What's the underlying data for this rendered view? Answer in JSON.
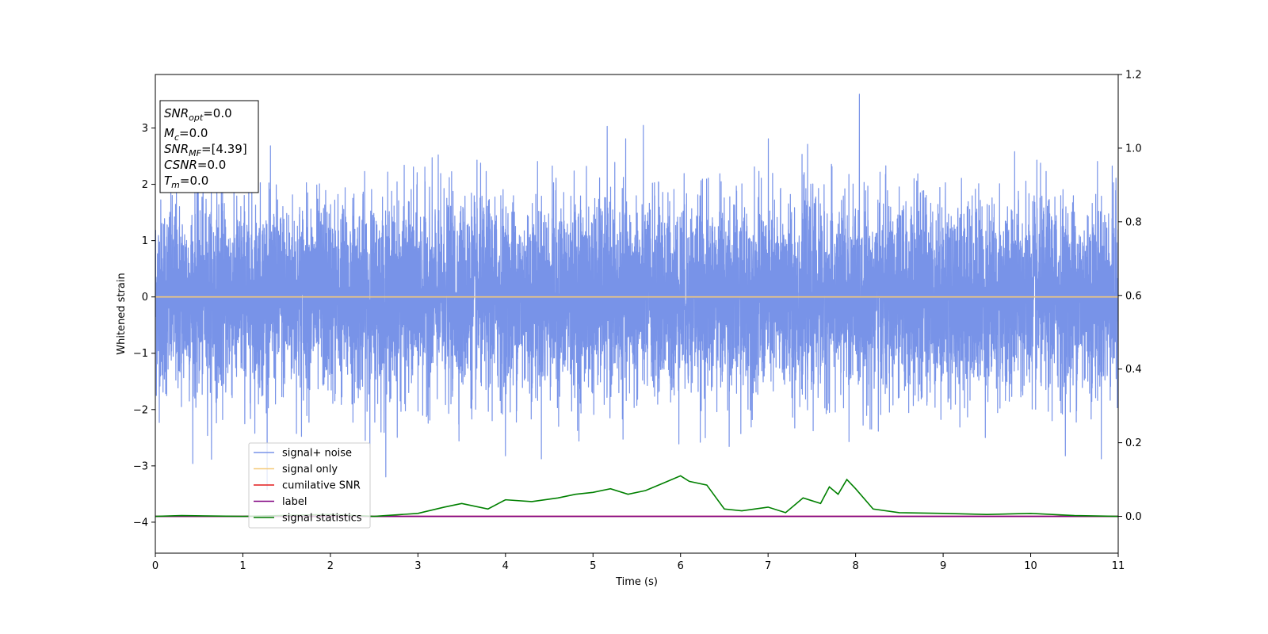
{
  "chart_data": {
    "type": "line",
    "title": "",
    "xlabel": "Time (s)",
    "ylabel": "Whitened strain",
    "xlim": [
      0,
      11
    ],
    "ylim": [
      -4.55,
      3.95
    ],
    "y2lim": [
      -0.1,
      1.2
    ],
    "x_ticks": [
      0,
      1,
      2,
      3,
      4,
      5,
      6,
      7,
      8,
      9,
      10,
      11
    ],
    "y_ticks": [
      -4,
      -3,
      -2,
      -1,
      0,
      1,
      2,
      3
    ],
    "y_tick_labels": [
      "−4",
      "−3",
      "−2",
      "−1",
      "0",
      "1",
      "2",
      "3"
    ],
    "y2_ticks": [
      0.0,
      0.2,
      0.4,
      0.6,
      0.8,
      1.0,
      1.2
    ],
    "y2_tick_labels": [
      "0.0",
      "0.2",
      "0.4",
      "0.6",
      "0.8",
      "1.0",
      "1.2"
    ],
    "grid": false,
    "legend_position": "lower-left",
    "info_box": {
      "snr_opt": {
        "base": "SNR",
        "sub": "opt",
        "value": "=0.0"
      },
      "mc": {
        "base": "M",
        "sub": "c",
        "value": "=0.0"
      },
      "snr_mf": {
        "base": "SNR",
        "sub": "MF",
        "value": "=[4.39]"
      },
      "csnr": {
        "base": "CSNR",
        "value": "=0.0"
      },
      "tm": {
        "base": "T",
        "sub": "m",
        "value": "=0.0"
      }
    },
    "series": [
      {
        "name": "signal+ noise",
        "axis": "left",
        "color": "#7893e8",
        "kind": "noise",
        "duration": 11,
        "std": 1.0,
        "approx_range": [
          -4.0,
          3.6
        ]
      },
      {
        "name": "signal only",
        "axis": "left",
        "color": "#f5c97a",
        "x": [
          0,
          11
        ],
        "y": [
          0,
          0
        ]
      },
      {
        "name": "cumilative SNR",
        "axis": "right",
        "color": "#e41a1c",
        "x": [
          0,
          11
        ],
        "y": [
          0,
          0
        ]
      },
      {
        "name": "label",
        "axis": "right",
        "color": "#800080",
        "x": [
          0,
          11
        ],
        "y": [
          0,
          0
        ]
      },
      {
        "name": "signal statistics",
        "axis": "right",
        "color": "#008000",
        "x": [
          0,
          0.3,
          1.0,
          2.0,
          2.5,
          3.0,
          3.3,
          3.5,
          3.8,
          4.0,
          4.3,
          4.6,
          4.8,
          5.0,
          5.2,
          5.4,
          5.6,
          5.8,
          6.0,
          6.1,
          6.3,
          6.5,
          6.7,
          7.0,
          7.2,
          7.4,
          7.6,
          7.7,
          7.8,
          7.9,
          8.0,
          8.2,
          8.5,
          9.0,
          9.5,
          10.0,
          10.5,
          11.0
        ],
        "y": [
          0.0,
          0.002,
          0.0,
          0.005,
          0.0,
          0.008,
          0.025,
          0.035,
          0.02,
          0.045,
          0.04,
          0.05,
          0.06,
          0.065,
          0.075,
          0.06,
          0.07,
          0.09,
          0.11,
          0.095,
          0.085,
          0.02,
          0.015,
          0.025,
          0.01,
          0.05,
          0.035,
          0.08,
          0.06,
          0.1,
          0.075,
          0.02,
          0.01,
          0.008,
          0.005,
          0.008,
          0.002,
          0.0
        ]
      }
    ]
  }
}
